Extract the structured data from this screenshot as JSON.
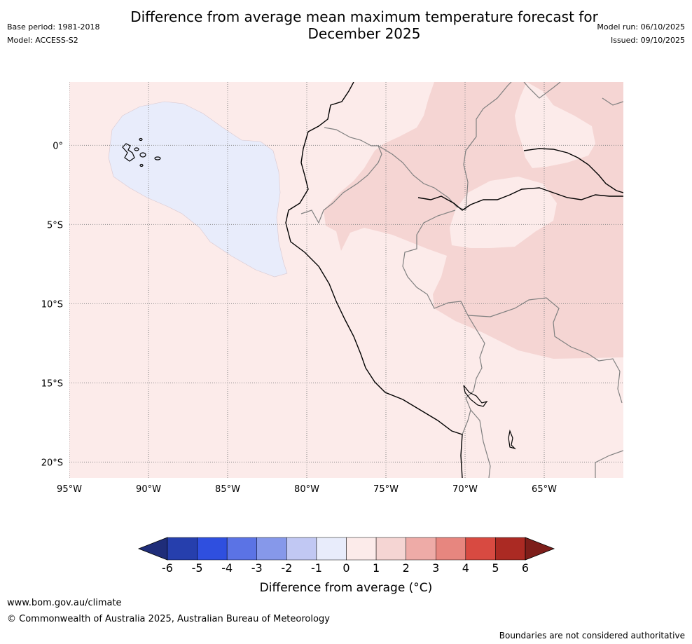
{
  "title": {
    "line1": "Difference from average mean maximum temperature forecast for",
    "line2": "December 2025"
  },
  "meta_left": {
    "base_period": "Base period: 1981-2018",
    "model": "Model: ACCESS-S2"
  },
  "meta_right": {
    "model_run": "Model run: 06/10/2025",
    "issued": "Issued: 09/10/2025"
  },
  "map": {
    "lon_labels": [
      "95°W",
      "90°W",
      "85°W",
      "80°W",
      "75°W",
      "70°W",
      "65°W"
    ],
    "lat_labels": [
      "0°",
      "5°S",
      "10°S",
      "15°S",
      "20°S"
    ],
    "lon_values": [
      -95,
      -90,
      -85,
      -80,
      -75,
      -70,
      -65
    ],
    "lat_values": [
      0,
      -5,
      -10,
      -15,
      -20
    ],
    "extent": {
      "lon_min": -95,
      "lon_max": -60,
      "lat_min": -21,
      "lat_max": 4
    }
  },
  "colorbar": {
    "ticks": [
      "-6",
      "-5",
      "-4",
      "-3",
      "-2",
      "-1",
      "0",
      "1",
      "2",
      "3",
      "4",
      "5",
      "6"
    ],
    "colors": [
      "#263fad",
      "#2f4fdf",
      "#5b73e5",
      "#8698ea",
      "#c1c8f3",
      "#e8ecfb",
      "#fcebea",
      "#f5d5d3",
      "#eeaba7",
      "#e7867f",
      "#d84a41",
      "#ab2a23"
    ],
    "under_color": "#1f2d79",
    "over_color": "#7d1e1a",
    "label": "Difference from average (°C)"
  },
  "colors": {
    "band_0_1": "#fcebea",
    "band_1_2": "#f5d5d3",
    "band_m1_0": "#e8ecfb",
    "coast": "#000000",
    "border": "#808080"
  },
  "footer": {
    "url": "www.bom.gov.au/climate",
    "copyright": "© Commonwealth of Australia 2025, Australian Bureau of Meteorology",
    "disclaimer": "Boundaries are not considered authoritative"
  }
}
